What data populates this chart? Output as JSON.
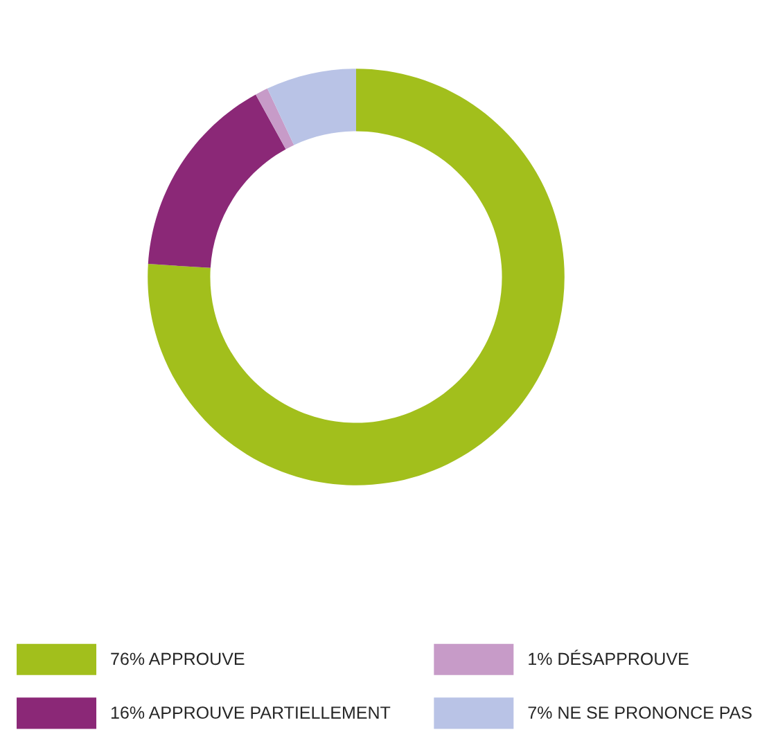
{
  "chart_data": {
    "type": "donut",
    "categories": [
      "76% APPROUVE",
      "16% APPROUVE PARTIELLEMENT",
      "1% DÉSAPPROUVE",
      "7% NE SE PRONONCE PAS"
    ],
    "values": [
      76,
      16,
      1,
      7
    ],
    "colors": [
      "#a2bf1c",
      "#8b2877",
      "#c79bc8",
      "#b9c3e6"
    ],
    "legend": "bottom"
  }
}
